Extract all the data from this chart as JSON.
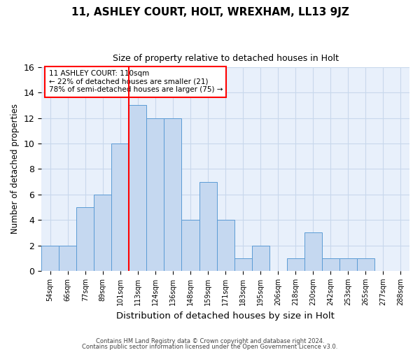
{
  "title1": "11, ASHLEY COURT, HOLT, WREXHAM, LL13 9JZ",
  "title2": "Size of property relative to detached houses in Holt",
  "xlabel": "Distribution of detached houses by size in Holt",
  "ylabel": "Number of detached properties",
  "categories": [
    "54sqm",
    "66sqm",
    "77sqm",
    "89sqm",
    "101sqm",
    "113sqm",
    "124sqm",
    "136sqm",
    "148sqm",
    "159sqm",
    "171sqm",
    "183sqm",
    "195sqm",
    "206sqm",
    "218sqm",
    "230sqm",
    "242sqm",
    "253sqm",
    "265sqm",
    "277sqm",
    "288sqm"
  ],
  "values": [
    2,
    2,
    5,
    6,
    10,
    13,
    12,
    12,
    4,
    7,
    4,
    1,
    2,
    0,
    1,
    3,
    1,
    1,
    1,
    0,
    0
  ],
  "bar_color": "#c5d8f0",
  "bar_edge_color": "#5b9bd5",
  "vline_index": 5.0,
  "annotation_lines": [
    "11 ASHLEY COURT: 110sqm",
    "← 22% of detached houses are smaller (21)",
    "78% of semi-detached houses are larger (75) →"
  ],
  "annotation_box_color": "white",
  "annotation_box_edge": "red",
  "vline_color": "red",
  "ylim": [
    0,
    16
  ],
  "yticks": [
    0,
    2,
    4,
    6,
    8,
    10,
    12,
    14,
    16
  ],
  "grid_color": "#c8d8ec",
  "background_color": "#e8f0fb",
  "footer1": "Contains HM Land Registry data © Crown copyright and database right 2024.",
  "footer2": "Contains public sector information licensed under the Open Government Licence v3.0."
}
